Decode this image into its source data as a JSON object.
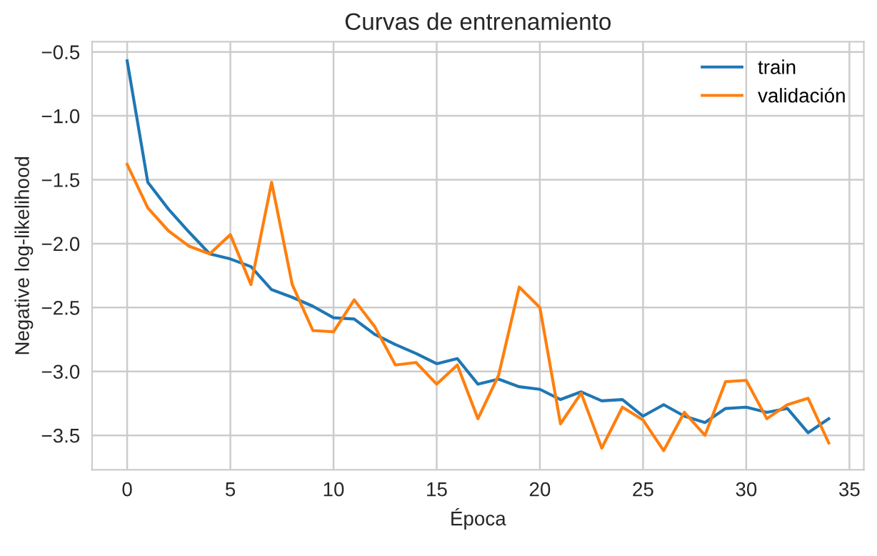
{
  "chart_data": {
    "type": "line",
    "title": "Curvas de entrenamiento",
    "xlabel": "Época",
    "ylabel": "Negative log-likelihood",
    "x": [
      0,
      1,
      2,
      3,
      4,
      5,
      6,
      7,
      8,
      9,
      10,
      11,
      12,
      13,
      14,
      15,
      16,
      17,
      18,
      19,
      20,
      21,
      22,
      23,
      24,
      25,
      26,
      27,
      28,
      29,
      30,
      31,
      32,
      33,
      34
    ],
    "series": [
      {
        "name": "train",
        "color": "#1f77b4",
        "values": [
          -0.57,
          -1.52,
          -1.73,
          -1.91,
          -2.08,
          -2.12,
          -2.18,
          -2.36,
          -2.42,
          -2.49,
          -2.58,
          -2.59,
          -2.71,
          -2.79,
          -2.86,
          -2.94,
          -2.9,
          -3.1,
          -3.06,
          -3.12,
          -3.14,
          -3.22,
          -3.16,
          -3.23,
          -3.22,
          -3.35,
          -3.26,
          -3.35,
          -3.4,
          -3.29,
          -3.28,
          -3.32,
          -3.29,
          -3.48,
          -3.37
        ]
      },
      {
        "name": "validación",
        "color": "#ff7f0e",
        "values": [
          -1.38,
          -1.72,
          -1.9,
          -2.02,
          -2.08,
          -1.93,
          -2.32,
          -1.52,
          -2.32,
          -2.68,
          -2.69,
          -2.44,
          -2.65,
          -2.95,
          -2.93,
          -3.1,
          -2.95,
          -3.37,
          -3.03,
          -2.34,
          -2.5,
          -3.41,
          -3.17,
          -3.6,
          -3.28,
          -3.38,
          -3.62,
          -3.32,
          -3.5,
          -3.08,
          -3.07,
          -3.37,
          -3.26,
          -3.21,
          -3.56
        ]
      }
    ],
    "xlim": [
      -1.7,
      35.7
    ],
    "ylim": [
      -3.77,
      -0.42
    ],
    "xticks": [
      0,
      5,
      10,
      15,
      20,
      25,
      30,
      35
    ],
    "yticks": [
      {
        "value": -3.5,
        "label": "−3.5"
      },
      {
        "value": -3.0,
        "label": "−3.0"
      },
      {
        "value": -2.5,
        "label": "−2.5"
      },
      {
        "value": -2.0,
        "label": "−2.0"
      },
      {
        "value": -1.5,
        "label": "−1.5"
      },
      {
        "value": -1.0,
        "label": "−1.0"
      },
      {
        "value": -0.5,
        "label": "−0.5"
      }
    ],
    "grid": true,
    "legend": "top right",
    "marker": "none",
    "line_style": "solid"
  }
}
